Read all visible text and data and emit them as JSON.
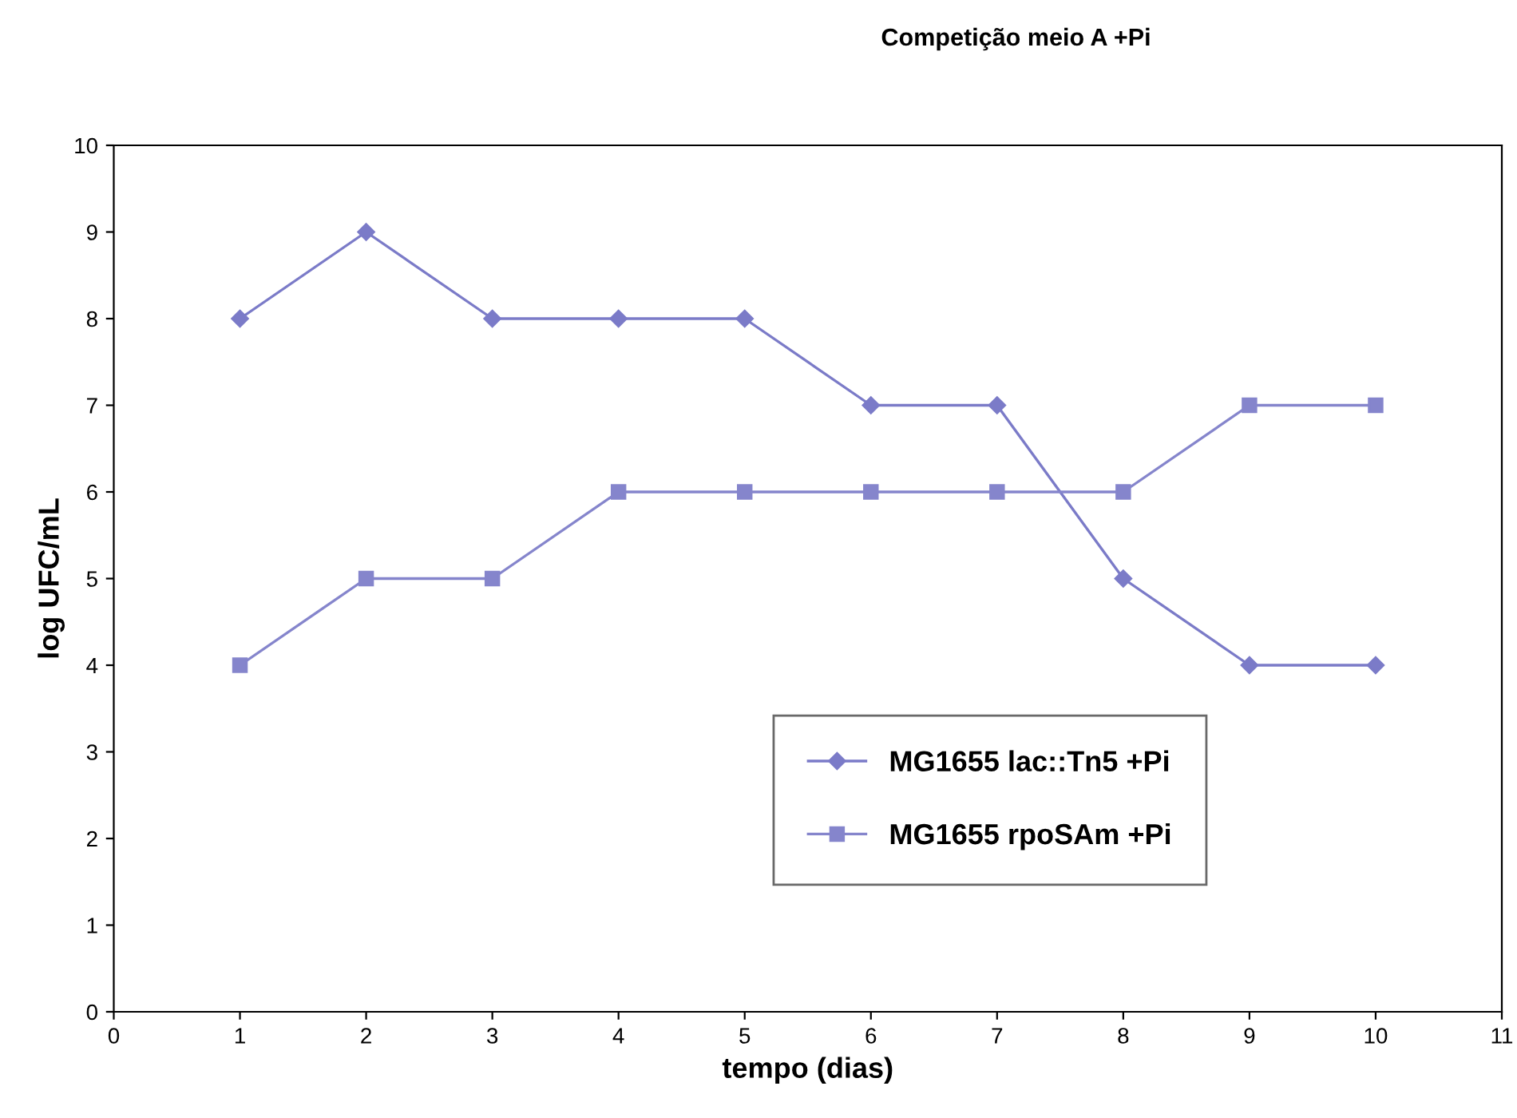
{
  "chart_data": {
    "type": "line",
    "title": "Competição meio A +Pi",
    "xlabel": "tempo (dias)",
    "ylabel": "log UFC/mL",
    "x": [
      1,
      2,
      3,
      4,
      5,
      6,
      7,
      8,
      9,
      10
    ],
    "series": [
      {
        "name": "MG1655 lac::Tn5 +Pi",
        "color": "#7b7bc8",
        "marker": "diamond",
        "values": [
          8,
          9,
          8,
          8,
          8,
          7,
          7,
          5,
          4,
          4
        ]
      },
      {
        "name": "MG1655 rpoSAm +Pi",
        "color": "#8585cc",
        "marker": "square",
        "values": [
          4,
          5,
          5,
          6,
          6,
          6,
          6,
          6,
          7,
          7
        ]
      }
    ],
    "xlim": [
      0,
      11
    ],
    "xticks": [
      0,
      1,
      2,
      3,
      4,
      5,
      6,
      7,
      8,
      9,
      10,
      11
    ],
    "ylim": [
      0,
      10
    ],
    "yticks": [
      0,
      1,
      2,
      3,
      4,
      5,
      6,
      7,
      8,
      9,
      10
    ],
    "grid": false,
    "legend": "bottom right",
    "line_style": "solid"
  }
}
